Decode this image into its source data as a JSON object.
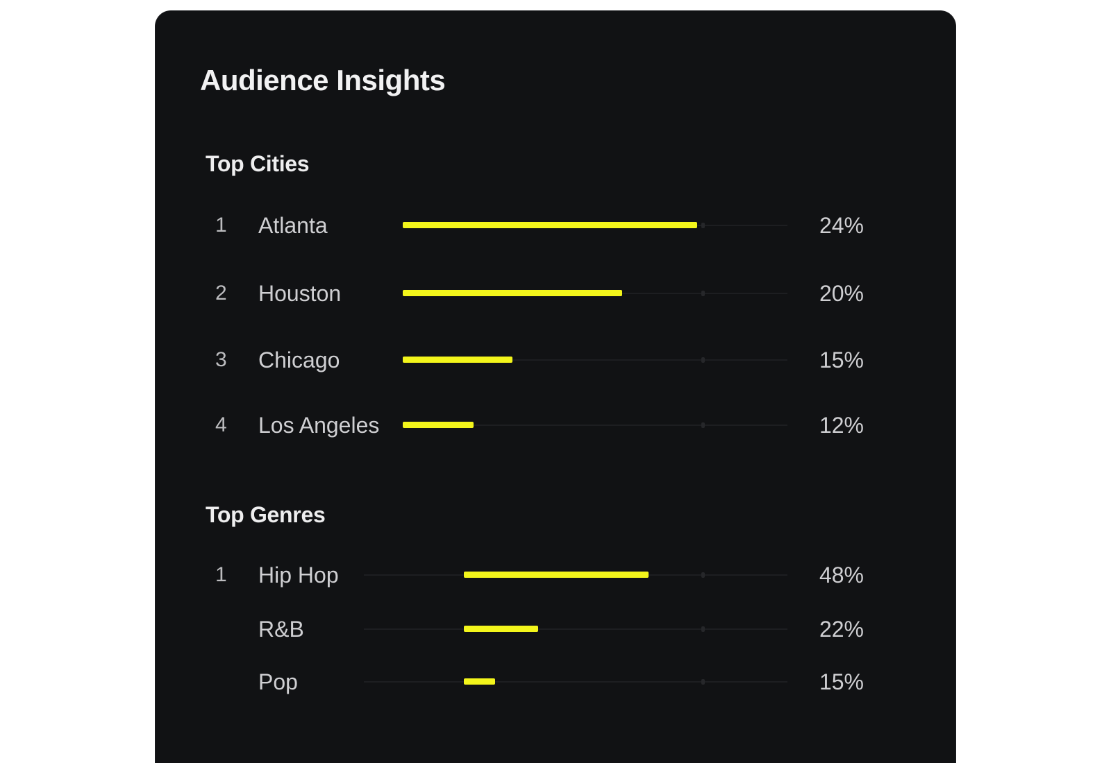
{
  "card": {
    "title": "Audience Insights"
  },
  "top_cities": {
    "title": "Top Cities",
    "items": [
      {
        "rank": "1",
        "name": "Atlanta",
        "value_label": "24%",
        "bar_fill": 0.75
      },
      {
        "rank": "2",
        "name": "Houston",
        "value_label": "20%",
        "bar_fill": 0.56
      },
      {
        "rank": "3",
        "name": "Chicago",
        "value_label": "15%",
        "bar_fill": 0.28
      },
      {
        "rank": "4",
        "name": "Los Angeles",
        "value_label": "12%",
        "bar_fill": 0.18
      }
    ]
  },
  "top_genres": {
    "title": "Top Genres",
    "items": [
      {
        "rank": "1",
        "name": "Hip Hop",
        "value_label": "48%",
        "bar_fill": 0.47
      },
      {
        "rank": "",
        "name": "R&B",
        "value_label": "22%",
        "bar_fill": 0.19
      },
      {
        "rank": "",
        "name": "Pop",
        "value_label": "15%",
        "bar_fill": 0.08
      }
    ]
  },
  "colors": {
    "card_background": "#111214",
    "bar_fill": "#f3f51b",
    "bar_track": "#1d1e21",
    "text_primary": "#f2f2f3",
    "text_secondary": "#cfcfd2"
  }
}
